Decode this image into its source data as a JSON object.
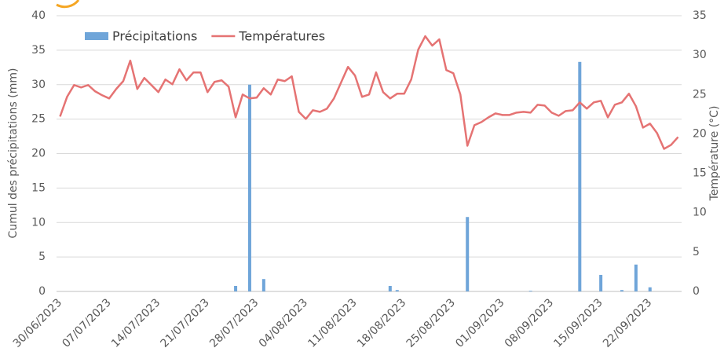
{
  "chart_data": {
    "type": "combo",
    "y_label": "Cumul des précipitations (mm)",
    "y2_label": "Température (°C)",
    "categories": [
      "30/06/2023",
      null,
      null,
      null,
      null,
      null,
      null,
      "07/07/2023",
      null,
      null,
      null,
      null,
      null,
      null,
      "14/07/2023",
      null,
      null,
      null,
      null,
      null,
      null,
      "21/07/2023",
      null,
      null,
      null,
      null,
      null,
      null,
      "28/07/2023",
      null,
      null,
      null,
      null,
      null,
      null,
      "04/08/2023",
      null,
      null,
      null,
      null,
      null,
      null,
      "11/08/2023",
      null,
      null,
      null,
      null,
      null,
      null,
      "18/08/2023",
      null,
      null,
      null,
      null,
      null,
      null,
      "25/08/2023",
      null,
      null,
      null,
      null,
      null,
      null,
      "01/09/2023",
      null,
      null,
      null,
      null,
      null,
      null,
      "08/09/2023",
      null,
      null,
      null,
      null,
      null,
      null,
      "15/09/2023",
      null,
      null,
      null,
      null,
      null,
      null,
      "22/09/2023",
      null,
      null,
      null,
      null
    ],
    "series": [
      {
        "name": "Précipitations",
        "type": "bar",
        "color": "#6fa5d9",
        "values": [
          0,
          0,
          0,
          0,
          0,
          0,
          0,
          0,
          0,
          0,
          0,
          0,
          0,
          0,
          0,
          0,
          0,
          0,
          0,
          0,
          0,
          0,
          0,
          0,
          0,
          0.8,
          0,
          30,
          0,
          1.8,
          0,
          0,
          0,
          0,
          0,
          0,
          0,
          0,
          0,
          0,
          0,
          0,
          0,
          0,
          0,
          0,
          0,
          0.8,
          0.2,
          0,
          0,
          0,
          0,
          0,
          0,
          0,
          0,
          0,
          10.8,
          0,
          0,
          0,
          0,
          0,
          0,
          0,
          0,
          0.1,
          0,
          0,
          0,
          0,
          0,
          0,
          33.3,
          0,
          0,
          2.4,
          0,
          0,
          0.2,
          0,
          3.9,
          0,
          0.6,
          0,
          0,
          0,
          0
        ]
      },
      {
        "name": "Températures",
        "type": "line",
        "axis": "y2",
        "color": "#e57373",
        "values": [
          22.2,
          24.7,
          26.2,
          25.9,
          26.2,
          25.4,
          24.9,
          24.5,
          25.7,
          26.7,
          29.3,
          25.7,
          27.1,
          26.2,
          25.3,
          26.9,
          26.3,
          28.2,
          26.8,
          27.8,
          27.8,
          25.3,
          26.6,
          26.8,
          26.0,
          22.1,
          25.0,
          24.5,
          24.6,
          25.8,
          25.0,
          26.9,
          26.7,
          27.3,
          22.8,
          21.9,
          23.0,
          22.8,
          23.2,
          24.5,
          26.5,
          28.5,
          27.4,
          24.7,
          25.0,
          27.8,
          25.3,
          24.5,
          25.1,
          25.1,
          26.9,
          30.7,
          32.4,
          31.2,
          32.0,
          28.1,
          27.7,
          25.0,
          18.5,
          21.1,
          21.5,
          22.1,
          22.6,
          22.4,
          22.4,
          22.7,
          22.8,
          22.7,
          23.7,
          23.6,
          22.7,
          22.3,
          22.9,
          23.0,
          24.0,
          23.2,
          24.0,
          24.2,
          22.1,
          23.7,
          24.0,
          25.1,
          23.5,
          20.8,
          21.3,
          20.1,
          18.1,
          18.6,
          19.6
        ]
      }
    ],
    "ylim": [
      0,
      40
    ],
    "yticks": [
      0,
      5,
      10,
      15,
      20,
      25,
      30,
      35,
      40
    ],
    "y2lim": [
      0,
      35
    ],
    "y2ticks": [
      0,
      5,
      10,
      15,
      20,
      25,
      30,
      35
    ],
    "grid": true,
    "legend": "top-left"
  }
}
